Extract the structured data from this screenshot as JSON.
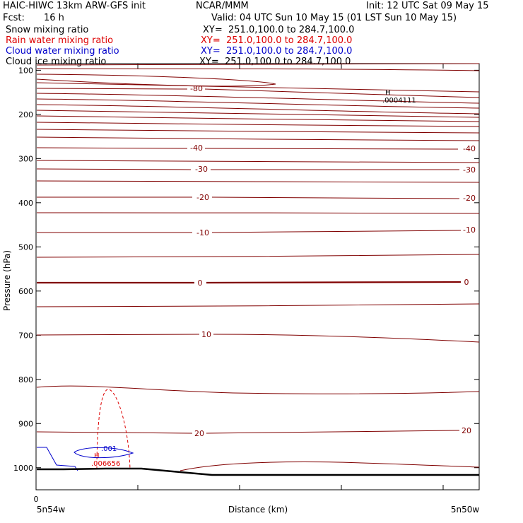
{
  "header": {
    "title_left": "HAIC-HIWC 13km ARW-GFS init",
    "org": "NCAR/MMM",
    "init": "Init: 12 UTC Sat 09 May 15",
    "fcst_label": "Fcst:",
    "fcst_value": "16 h",
    "valid": "Valid: 04 UTC Sun 10 May 15 (01 LST Sun 10 May 15)"
  },
  "legend": [
    {
      "label": "Snow mixing ratio",
      "xy": "XY=  251.0,100.0 to 284.7,100.0",
      "color": "#000000"
    },
    {
      "label": "Rain water mixing ratio",
      "xy": "XY=  251.0,100.0 to 284.7,100.0",
      "color": "#dd0000"
    },
    {
      "label": "Cloud water mixing ratio",
      "xy": "XY=  251.0,100.0 to 284.7,100.0",
      "color": "#0000cc"
    },
    {
      "label": "Cloud ice mixing ratio",
      "xy": "XY=  251.0,100.0 to 284.7,100.0",
      "color": "#000000"
    }
  ],
  "chart_data": {
    "type": "line",
    "ylabel": "Pressure (hPa)",
    "xlabel": "Distance (km)",
    "y_ticks": [
      100,
      200,
      300,
      400,
      500,
      600,
      700,
      800,
      900,
      1000
    ],
    "y_range": [
      1050,
      85
    ],
    "x_origin_label": "0",
    "x_left_label": "5n54w",
    "x_right_label": "5n50w",
    "temperature_contours": [
      {
        "value": -80,
        "label": "-80"
      },
      {
        "value": -40,
        "label": "-40"
      },
      {
        "value": -30,
        "label": "-30"
      },
      {
        "value": -20,
        "label": "-20"
      },
      {
        "value": -10,
        "label": "-10"
      },
      {
        "value": 0,
        "label": "0"
      },
      {
        "value": 10,
        "label": "10"
      },
      {
        "value": 20,
        "label": "20"
      }
    ],
    "annotations": [
      {
        "mark": "H",
        "value": ".0004111",
        "color": "#000000"
      },
      {
        "mark": "H",
        "value": ".006656",
        "color": "#dd0000"
      },
      {
        "mark": "",
        "value": ".001",
        "color": "#0000cc"
      }
    ],
    "colors": {
      "temperature": "#800000",
      "rain": "#dd0000",
      "cloud_water": "#0000cc",
      "terrain": "#000000"
    }
  }
}
